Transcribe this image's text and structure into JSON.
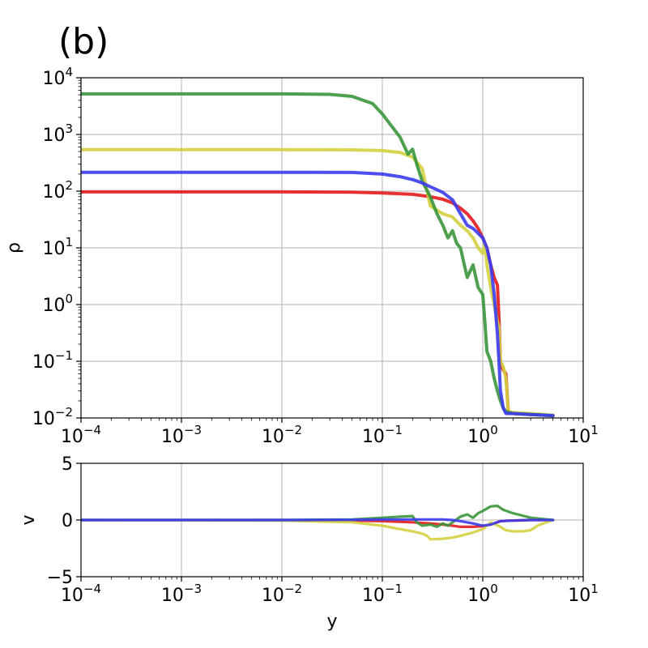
{
  "panel_label": "(b)",
  "chart_data": [
    {
      "type": "line",
      "xlabel": "",
      "ylabel": "ρ",
      "xscale": "log",
      "yscale": "log",
      "xlim": [
        0.0001,
        10
      ],
      "ylim": [
        0.01,
        10000
      ],
      "grid": true,
      "x_ticks": [
        {
          "base": "10",
          "exp": "−4",
          "value": 0.0001
        },
        {
          "base": "10",
          "exp": "−3",
          "value": 0.001
        },
        {
          "base": "10",
          "exp": "−2",
          "value": 0.01
        },
        {
          "base": "10",
          "exp": "−1",
          "value": 0.1
        },
        {
          "base": "10",
          "exp": "0",
          "value": 1
        },
        {
          "base": "10",
          "exp": "1",
          "value": 10
        }
      ],
      "y_ticks": [
        {
          "base": "10",
          "exp": "−2",
          "value": 0.01
        },
        {
          "base": "10",
          "exp": "−1",
          "value": 0.1
        },
        {
          "base": "10",
          "exp": "0",
          "value": 1
        },
        {
          "base": "10",
          "exp": "1",
          "value": 10
        },
        {
          "base": "10",
          "exp": "2",
          "value": 100
        },
        {
          "base": "10",
          "exp": "3",
          "value": 1000
        },
        {
          "base": "10",
          "exp": "4",
          "value": 10000
        }
      ],
      "series": [
        {
          "color": "#e41a1c",
          "x": [
            0.0001,
            0.01,
            0.05,
            0.1,
            0.2,
            0.3,
            0.4,
            0.5,
            0.6,
            0.7,
            0.8,
            0.9,
            1.0,
            1.1,
            1.2,
            1.3,
            1.4,
            1.45,
            1.5,
            1.55,
            1.6,
            1.7,
            1.8,
            2.0,
            3.0,
            5.0
          ],
          "y": [
            97,
            97,
            96,
            93,
            88,
            80,
            72,
            62,
            50,
            40,
            30,
            22,
            15,
            10,
            5,
            3,
            2.2,
            0.6,
            0.1,
            0.08,
            0.07,
            0.06,
            0.012,
            0.012,
            0.0115,
            0.011
          ]
        },
        {
          "color": "#d4d040",
          "x": [
            0.0001,
            0.01,
            0.05,
            0.1,
            0.15,
            0.2,
            0.25,
            0.28,
            0.3,
            0.4,
            0.5,
            0.6,
            0.7,
            0.8,
            0.9,
            1.0,
            1.05,
            1.1,
            1.2,
            1.3,
            1.4,
            1.45,
            1.5,
            1.6,
            1.7,
            1.8,
            2.0,
            3.0,
            5.0
          ],
          "y": [
            540,
            540,
            535,
            520,
            480,
            400,
            250,
            100,
            55,
            40,
            35,
            25,
            20,
            15,
            10,
            8,
            12,
            5,
            2,
            1,
            0.5,
            0.4,
            0.1,
            0.08,
            0.05,
            0.013,
            0.0125,
            0.012,
            0.0112
          ]
        },
        {
          "color": "#3a963a",
          "x": [
            0.0001,
            0.01,
            0.03,
            0.05,
            0.08,
            0.1,
            0.15,
            0.18,
            0.2,
            0.22,
            0.25,
            0.3,
            0.35,
            0.4,
            0.45,
            0.5,
            0.55,
            0.6,
            0.7,
            0.8,
            0.9,
            1.0,
            1.05,
            1.1,
            1.2,
            1.3,
            1.4,
            1.5,
            1.6,
            1.7,
            2.0,
            3.0,
            5.0
          ],
          "y": [
            5200,
            5200,
            5100,
            4700,
            3500,
            2300,
            900,
            450,
            550,
            300,
            150,
            80,
            40,
            25,
            15,
            20,
            12,
            10,
            3,
            5,
            2,
            1.5,
            0.5,
            0.15,
            0.1,
            0.05,
            0.03,
            0.02,
            0.015,
            0.013,
            0.012,
            0.0115,
            0.011
          ]
        },
        {
          "color": "#3b3bf0",
          "x": [
            0.0001,
            0.01,
            0.05,
            0.1,
            0.15,
            0.2,
            0.25,
            0.3,
            0.4,
            0.5,
            0.6,
            0.7,
            0.8,
            0.9,
            1.0,
            1.1,
            1.2,
            1.3,
            1.4,
            1.45,
            1.5,
            1.6,
            1.7,
            2.0,
            3.0,
            5.0
          ],
          "y": [
            215,
            215,
            214,
            200,
            180,
            160,
            140,
            120,
            95,
            70,
            40,
            25,
            22,
            18,
            15,
            10,
            5,
            1.5,
            0.3,
            0.1,
            0.03,
            0.015,
            0.012,
            0.012,
            0.0115,
            0.011
          ]
        }
      ]
    },
    {
      "type": "line",
      "xlabel": "y",
      "ylabel": "v",
      "xscale": "log",
      "yscale": "linear",
      "xlim": [
        0.0001,
        10
      ],
      "ylim": [
        -5,
        5
      ],
      "grid": true,
      "x_ticks": [
        {
          "base": "10",
          "exp": "−4",
          "value": 0.0001
        },
        {
          "base": "10",
          "exp": "−3",
          "value": 0.001
        },
        {
          "base": "10",
          "exp": "−2",
          "value": 0.01
        },
        {
          "base": "10",
          "exp": "−1",
          "value": 0.1
        },
        {
          "base": "10",
          "exp": "0",
          "value": 1
        },
        {
          "base": "10",
          "exp": "1",
          "value": 10
        }
      ],
      "y_ticks": [
        {
          "label": "−5",
          "value": -5
        },
        {
          "label": "0",
          "value": 0
        },
        {
          "label": "5",
          "value": 5
        }
      ],
      "series": [
        {
          "color": "#e41a1c",
          "x": [
            0.0001,
            0.01,
            0.05,
            0.1,
            0.2,
            0.3,
            0.4,
            0.5,
            0.6,
            0.8,
            1.0,
            1.2,
            1.5,
            1.8,
            2.0,
            3.0,
            5.0
          ],
          "y": [
            0,
            0,
            -0.05,
            -0.1,
            -0.2,
            -0.3,
            -0.4,
            -0.5,
            -0.6,
            -0.6,
            -0.55,
            -0.4,
            -0.1,
            -0.05,
            -0.05,
            0,
            0
          ]
        },
        {
          "color": "#d4d040",
          "x": [
            0.0001,
            0.01,
            0.05,
            0.1,
            0.15,
            0.2,
            0.25,
            0.28,
            0.3,
            0.4,
            0.5,
            0.6,
            0.8,
            1.0,
            1.2,
            1.5,
            1.7,
            2.0,
            2.5,
            3.0,
            3.5,
            4.0,
            5.0
          ],
          "y": [
            0,
            -0.05,
            -0.2,
            -0.5,
            -0.8,
            -1.0,
            -1.2,
            -1.4,
            -1.7,
            -1.65,
            -1.55,
            -1.4,
            -1.1,
            -0.8,
            -0.2,
            -0.6,
            -0.9,
            -1.0,
            -1.0,
            -0.9,
            -0.5,
            -0.3,
            0
          ]
        },
        {
          "color": "#3a963a",
          "x": [
            0.0001,
            0.01,
            0.05,
            0.1,
            0.15,
            0.2,
            0.22,
            0.25,
            0.3,
            0.35,
            0.4,
            0.45,
            0.5,
            0.6,
            0.7,
            0.8,
            0.9,
            1.0,
            1.2,
            1.4,
            1.6,
            2.0,
            3.0,
            5.0
          ],
          "y": [
            0,
            0,
            0.05,
            0.2,
            0.3,
            0.35,
            -0.2,
            -0.5,
            -0.4,
            -0.6,
            -0.3,
            -0.5,
            -0.2,
            0.3,
            0.5,
            0.2,
            0.6,
            0.8,
            1.2,
            1.25,
            0.9,
            0.6,
            0.2,
            0
          ]
        },
        {
          "color": "#3b3bf0",
          "x": [
            0.0001,
            0.01,
            0.05,
            0.1,
            0.2,
            0.3,
            0.4,
            0.5,
            0.6,
            0.8,
            1.0,
            1.2,
            1.5,
            2.0,
            3.0,
            5.0
          ],
          "y": [
            0,
            0,
            0.02,
            0.05,
            0.05,
            0.05,
            0.05,
            0.0,
            -0.1,
            -0.3,
            -0.5,
            -0.4,
            -0.1,
            -0.05,
            0,
            0
          ]
        }
      ]
    }
  ]
}
